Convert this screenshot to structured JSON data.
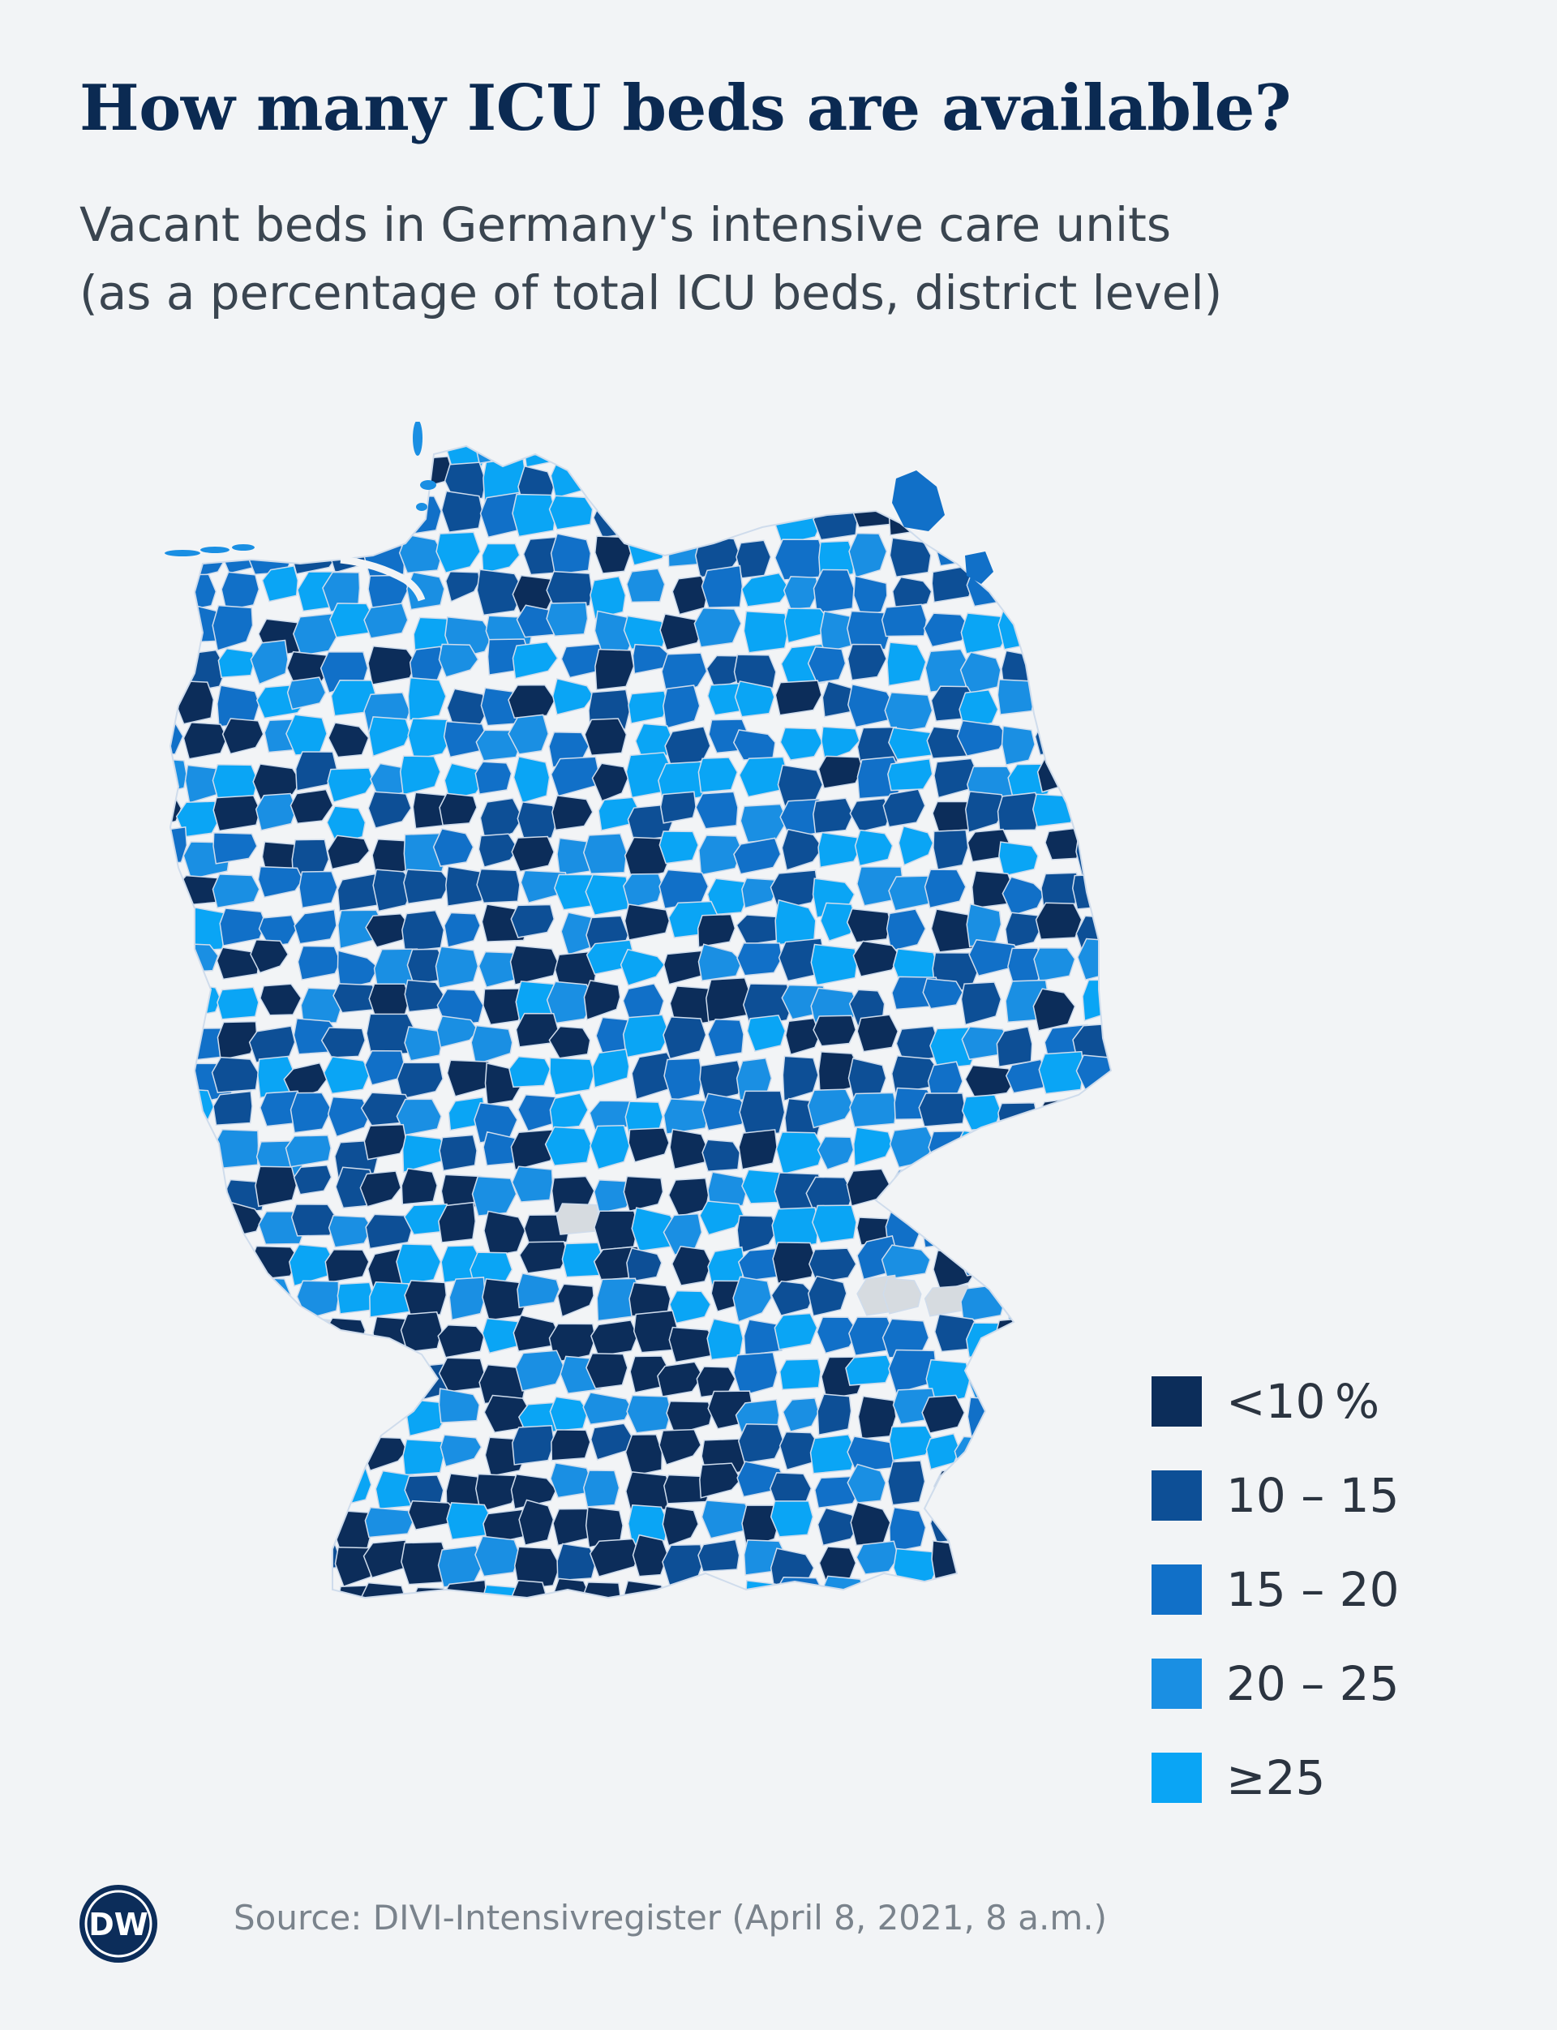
{
  "header": {
    "title": "How many ICU beds are available?",
    "subtitle_line1": "Vacant beds in Germany's intensive care units",
    "subtitle_line2": "(as a percentage of total ICU beds, district level)"
  },
  "map": {
    "region": "Germany",
    "unit_of_display": "district level",
    "no_data_color": "#d6dbe0",
    "border_color": "#cfdcec"
  },
  "legend": {
    "items": [
      {
        "label": "<10 %",
        "color": "#0c2d5a"
      },
      {
        "label": "10 – 15",
        "color": "#0d4f96"
      },
      {
        "label": "15 – 20",
        "color": "#1170c8"
      },
      {
        "label": "20 – 25",
        "color": "#1a8fe3"
      },
      {
        "label": "≥25",
        "color": "#0aa5f5"
      }
    ]
  },
  "footer": {
    "logo_text": "DW",
    "source": "Source: DIVI-Intensivregister (April 8, 2021, 8 a.m.)"
  }
}
